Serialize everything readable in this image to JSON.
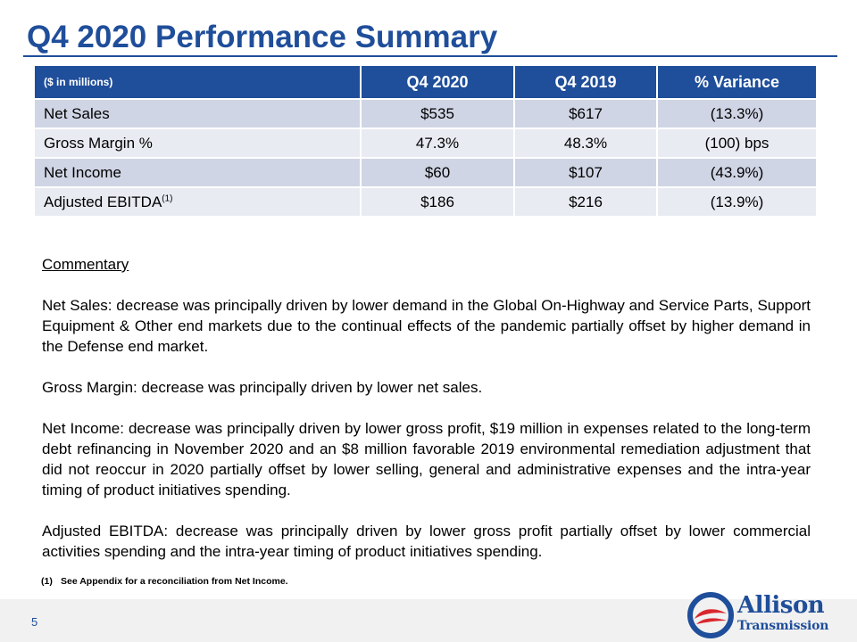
{
  "title": "Q4 2020 Performance Summary",
  "table": {
    "headers": [
      "($ in millions)",
      "Q4 2020",
      "Q4 2019",
      "% Variance"
    ],
    "rows": [
      {
        "label": "Net Sales",
        "sup": "",
        "q4_2020": "$535",
        "q4_2019": "$617",
        "variance": "(13.3%)"
      },
      {
        "label": "Gross Margin %",
        "sup": "",
        "q4_2020": "47.3%",
        "q4_2019": "48.3%",
        "variance": "(100) bps"
      },
      {
        "label": "Net Income",
        "sup": "",
        "q4_2020": "$60",
        "q4_2019": "$107",
        "variance": "(43.9%)"
      },
      {
        "label": "Adjusted EBITDA",
        "sup": "(1)",
        "q4_2020": "$186",
        "q4_2019": "$216",
        "variance": "(13.9%)"
      }
    ]
  },
  "commentary": {
    "heading": "Commentary",
    "paragraphs": [
      "Net Sales: decrease was principally driven by lower demand in the Global On-Highway and Service Parts, Support Equipment & Other end markets due to the continual effects of the pandemic partially offset by higher demand in the Defense end market.",
      "Gross Margin: decrease was principally driven by lower net sales.",
      "Net Income: decrease was principally driven by lower gross profit, $19 million in expenses related to the long-term debt refinancing in November 2020 and an $8 million favorable 2019 environmental remediation adjustment that did not reoccur in 2020 partially offset by lower selling, general and administrative expenses and the intra-year timing of product initiatives spending.",
      "Adjusted EBITDA: decrease was principally driven by lower gross profit partially offset by lower commercial activities spending and the intra-year timing of product initiatives spending."
    ]
  },
  "footnote": {
    "number": "(1)",
    "text": "See Appendix for a reconciliation from Net Income."
  },
  "footer": {
    "page_number": "5",
    "logo_line1": "Allison",
    "logo_line2": "Transmission",
    "logo_icon": "allison-swoosh-logo"
  },
  "colors": {
    "brand_blue": "#1f4e9a",
    "logo_red": "#d9272e",
    "row_band_dark": "#d0d5e5",
    "row_band_light": "#e8ebf2"
  }
}
